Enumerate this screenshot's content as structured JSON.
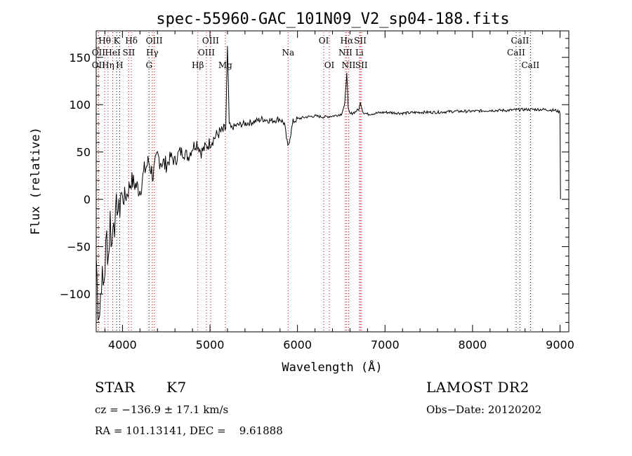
{
  "chart_data": {
    "type": "line",
    "title": "spec-55960-GAC_101N09_V2_sp04-188.fits",
    "xlabel": "Wavelength (Å)",
    "ylabel": "Flux (relative)",
    "xlim": [
      3700,
      9100
    ],
    "ylim": [
      -140,
      178
    ],
    "xticks": [
      4000,
      5000,
      6000,
      7000,
      8000,
      9000
    ],
    "yticks": [
      -100,
      -50,
      0,
      50,
      100,
      150
    ],
    "ytick_labels": [
      "−100",
      "−50",
      "0",
      "50",
      "100",
      "150"
    ],
    "grid": false,
    "series": [
      {
        "color": "#000000",
        "x": [
          3700,
          3720,
          3740,
          3760,
          3780,
          3800,
          3820,
          3840,
          3860,
          3880,
          3900,
          3920,
          3940,
          3960,
          3980,
          4000,
          4050,
          4100,
          4150,
          4200,
          4250,
          4300,
          4350,
          4400,
          4450,
          4500,
          4550,
          4600,
          4650,
          4700,
          4750,
          4800,
          4850,
          4900,
          4950,
          5000,
          5050,
          5100,
          5150,
          5180,
          5200,
          5210,
          5220,
          5240,
          5300,
          5400,
          5500,
          5600,
          5700,
          5800,
          5850,
          5890,
          5950,
          6000,
          6100,
          6200,
          6300,
          6400,
          6500,
          6540,
          6563,
          6580,
          6600,
          6650,
          6700,
          6720,
          6750,
          6800,
          6900,
          7000,
          7200,
          7400,
          7600,
          7800,
          8000,
          8200,
          8400,
          8600,
          8800,
          8950,
          9000,
          9005
        ],
        "y": [
          -60,
          -110,
          -120,
          -80,
          -95,
          -70,
          -40,
          -60,
          -20,
          -50,
          -10,
          -30,
          0,
          -20,
          10,
          0,
          5,
          20,
          15,
          10,
          30,
          40,
          25,
          45,
          40,
          35,
          45,
          40,
          50,
          50,
          45,
          55,
          60,
          50,
          55,
          60,
          65,
          70,
          72,
          75,
          160,
          120,
          80,
          75,
          78,
          80,
          82,
          85,
          83,
          85,
          80,
          55,
          82,
          85,
          87,
          88,
          87,
          88,
          90,
          100,
          135,
          95,
          90,
          92,
          95,
          102,
          92,
          90,
          91,
          92,
          91,
          92,
          92,
          93,
          93,
          94,
          94,
          95,
          95,
          94,
          92,
          0
        ]
      }
    ],
    "lines": [
      {
        "label": "Hθ",
        "x": 3797,
        "row": 1,
        "color": "#000000"
      },
      {
        "label": "OII",
        "x": 3727,
        "row": 2,
        "color": "#000000"
      },
      {
        "label": "OII",
        "x": 3727,
        "row": 3,
        "color": "#000000"
      },
      {
        "label": "Hη",
        "x": 3835,
        "row": 3,
        "color": "#000000"
      },
      {
        "label": "HeI",
        "x": 3889,
        "row": 2,
        "color": "#000000"
      },
      {
        "label": "K",
        "x": 3934,
        "row": 1,
        "color": "#000000"
      },
      {
        "label": "H",
        "x": 3968,
        "row": 3,
        "color": "#000000"
      },
      {
        "label": "SII",
        "x": 4072,
        "row": 2,
        "color": "#000000"
      },
      {
        "label": "Hδ",
        "x": 4102,
        "row": 1,
        "color": "#000000"
      },
      {
        "label": "OIII",
        "x": 4363,
        "row": 1,
        "color": "#000000"
      },
      {
        "label": "Hγ",
        "x": 4340,
        "row": 2,
        "color": "#000000"
      },
      {
        "label": "G",
        "x": 4304,
        "row": 3,
        "color": "#000000"
      },
      {
        "label": "Hβ",
        "x": 4861,
        "row": 3,
        "color": "#000000"
      },
      {
        "label": "OIII",
        "x": 4959,
        "row": 2,
        "color": "#000000"
      },
      {
        "label": "OIII",
        "x": 5007,
        "row": 1,
        "color": "#000000"
      },
      {
        "label": "Mg",
        "x": 5175,
        "row": 3,
        "color": "#000000"
      },
      {
        "label": "Na",
        "x": 5893,
        "row": 2,
        "color": "#000000"
      },
      {
        "label": "OI",
        "x": 6300,
        "row": 1,
        "color": "#000000"
      },
      {
        "label": "OI",
        "x": 6364,
        "row": 3,
        "color": "#000000"
      },
      {
        "label": "Hα",
        "x": 6563,
        "row": 1,
        "color": "#000000"
      },
      {
        "label": "NII",
        "x": 6548,
        "row": 2,
        "color": "#000000"
      },
      {
        "label": "NII",
        "x": 6584,
        "row": 3,
        "color": "#000000"
      },
      {
        "label": "SII",
        "x": 6717,
        "row": 1,
        "color": "#000000"
      },
      {
        "label": "Li",
        "x": 6708,
        "row": 2,
        "color": "#000000"
      },
      {
        "label": "SII",
        "x": 6731,
        "row": 3,
        "color": "#000000"
      },
      {
        "label": "CaII",
        "x": 8498,
        "row": 2,
        "color": "#000000"
      },
      {
        "label": "CaII",
        "x": 8542,
        "row": 1,
        "color": "#000000"
      },
      {
        "label": "CaII",
        "x": 8662,
        "row": 3,
        "color": "#000000"
      }
    ],
    "line_colors": {
      "emission": "#cc0000",
      "absorption": "#000000"
    }
  },
  "info": {
    "class": "STAR",
    "subclass": "K7",
    "survey": "LAMOST DR2",
    "cz": "cz = −136.9 ± 17.1 km/s",
    "obs_date": "Obs−Date: 20120202",
    "radec": "RA = 101.13141, DEC =    9.61888"
  }
}
